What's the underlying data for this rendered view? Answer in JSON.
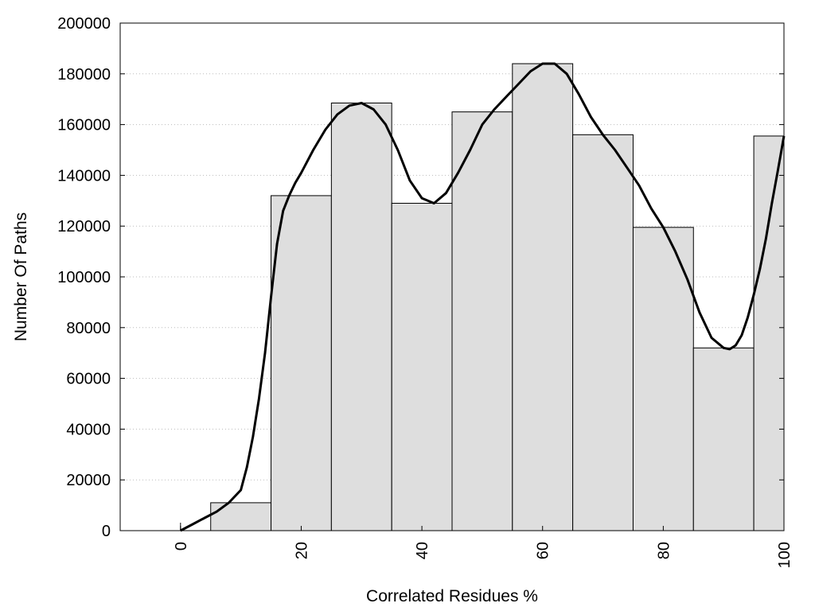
{
  "chart_data": {
    "type": "bar",
    "xlabel": "Correlated Residues %",
    "ylabel": "Number Of Paths",
    "xlim": [
      -10,
      100
    ],
    "ylim": [
      0,
      200000
    ],
    "grid": "horizontal dotted",
    "x_ticks": [
      0,
      20,
      40,
      60,
      80,
      100
    ],
    "y_ticks": [
      0,
      20000,
      40000,
      60000,
      80000,
      100000,
      120000,
      140000,
      160000,
      180000,
      200000
    ],
    "bars": [
      {
        "x": 0,
        "value": 0
      },
      {
        "x": 10,
        "value": 11000
      },
      {
        "x": 20,
        "value": 132000
      },
      {
        "x": 30,
        "value": 168500
      },
      {
        "x": 40,
        "value": 129000
      },
      {
        "x": 50,
        "value": 165000
      },
      {
        "x": 60,
        "value": 184000
      },
      {
        "x": 70,
        "value": 156000
      },
      {
        "x": 80,
        "value": 119500
      },
      {
        "x": 90,
        "value": 72000
      },
      {
        "x": 100,
        "value": 155500
      }
    ],
    "bar_width": 10,
    "smooth_curve": {
      "x": [
        0,
        2,
        4,
        6,
        8,
        10,
        11,
        12,
        13,
        14,
        15,
        16,
        17,
        18,
        19,
        20,
        22,
        24,
        26,
        28,
        30,
        32,
        34,
        36,
        38,
        40,
        42,
        44,
        46,
        48,
        50,
        52,
        54,
        56,
        58,
        60,
        62,
        64,
        66,
        68,
        70,
        72,
        74,
        76,
        78,
        80,
        82,
        84,
        86,
        88,
        90,
        91,
        92,
        93,
        94,
        95,
        96,
        97,
        98,
        99,
        100
      ],
      "y": [
        0,
        2500,
        5000,
        7500,
        11000,
        16000,
        25000,
        37000,
        52000,
        70000,
        92000,
        113000,
        126000,
        132000,
        137000,
        141000,
        150000,
        158000,
        164000,
        167500,
        168500,
        166000,
        160000,
        150000,
        138000,
        131000,
        129000,
        133000,
        141000,
        150000,
        160000,
        166000,
        171000,
        176000,
        181000,
        184000,
        184000,
        180000,
        172000,
        163000,
        156000,
        150000,
        143000,
        136000,
        127000,
        119500,
        110000,
        99000,
        86000,
        76000,
        72000,
        71500,
        73000,
        77000,
        84000,
        93000,
        103000,
        115000,
        129000,
        142000,
        155500
      ]
    },
    "colors": {
      "bar_fill": "#dedede",
      "line": "#000000"
    }
  }
}
